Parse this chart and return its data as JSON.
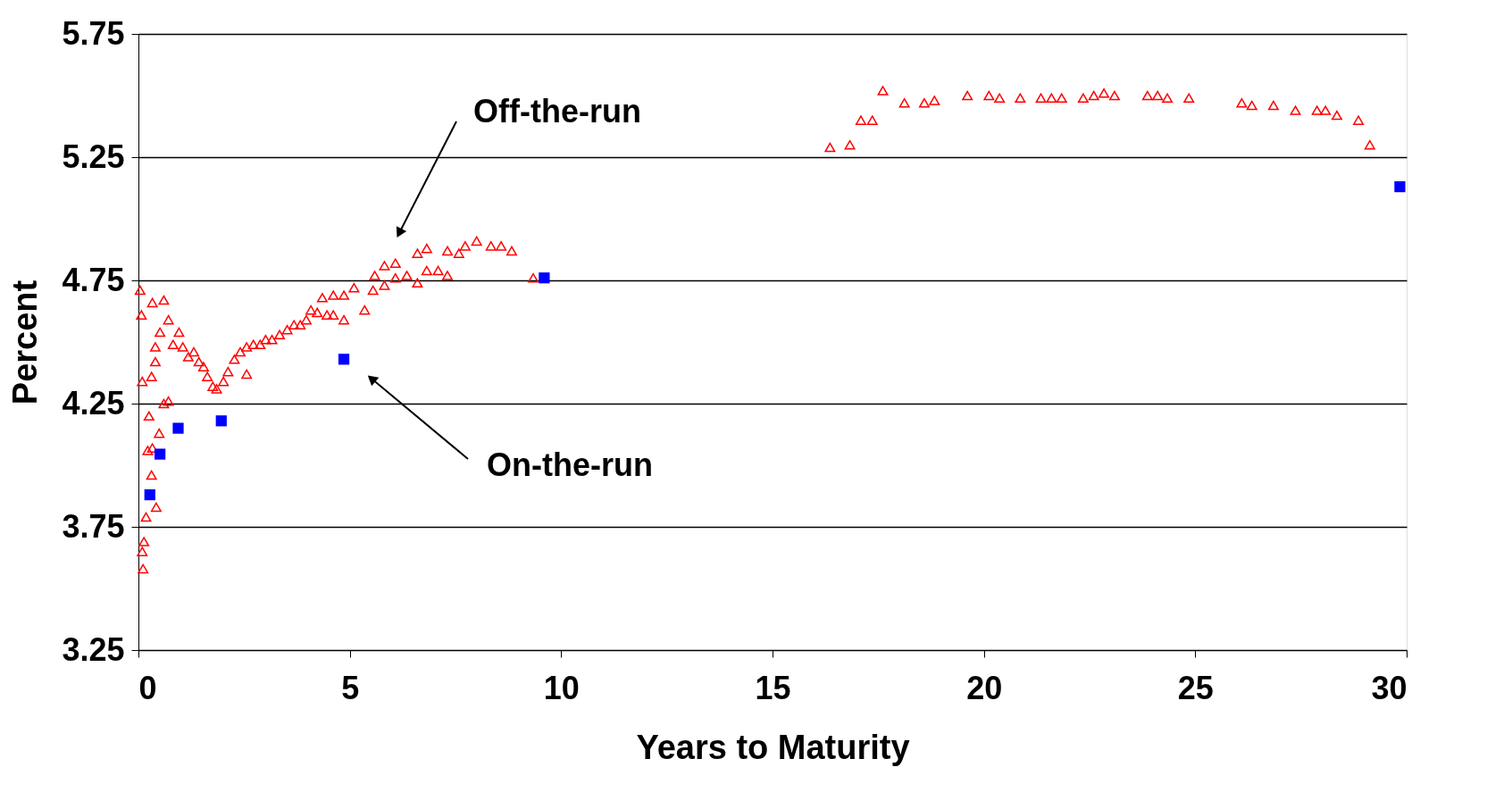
{
  "chart_data": {
    "type": "scatter",
    "xlabel": "Years to Maturity",
    "ylabel": "Percent",
    "xlim": [
      0,
      30
    ],
    "xticks": [
      0,
      5,
      10,
      15,
      20,
      25,
      30
    ],
    "ylim": [
      3.25,
      5.75
    ],
    "yticks": [
      3.25,
      3.75,
      4.25,
      4.75,
      5.25,
      5.75
    ],
    "grid": "y",
    "annotations": [
      "Off-the-run",
      "On-the-run"
    ],
    "series": [
      {
        "color": "#ff0000",
        "marker": "triangle",
        "x": [
          0.04,
          0.07,
          0.09,
          0.09,
          0.11,
          0.13,
          0.18,
          0.22,
          0.25,
          0.31,
          0.31,
          0.33,
          0.33,
          0.4,
          0.4,
          0.42,
          0.49,
          0.51,
          0.6,
          0.6,
          0.71,
          0.71,
          0.82,
          0.96,
          1.05,
          1.18,
          1.31,
          1.43,
          1.54,
          1.63,
          1.76,
          1.85,
          2.01,
          2.12,
          2.27,
          2.41,
          2.56,
          2.56,
          2.72,
          2.88,
          3.01,
          3.16,
          3.34,
          3.52,
          3.68,
          3.83,
          3.97,
          4.08,
          4.23,
          4.35,
          4.46,
          4.61,
          4.61,
          4.86,
          4.86,
          5.1,
          5.35,
          5.55,
          5.59,
          5.82,
          5.82,
          6.08,
          6.08,
          6.35,
          6.6,
          6.6,
          6.82,
          6.82,
          7.09,
          7.31,
          7.31,
          7.58,
          7.73,
          8.0,
          8.34,
          8.58,
          8.83,
          9.34,
          16.36,
          16.83,
          17.09,
          17.36,
          17.61,
          18.12,
          18.59,
          18.83,
          19.61,
          20.12,
          20.37,
          20.86,
          21.35,
          21.6,
          21.84,
          22.35,
          22.6,
          22.84,
          23.09,
          23.87,
          24.11,
          24.34,
          24.85,
          26.1,
          26.34,
          26.85,
          27.37,
          27.88,
          28.08,
          28.35,
          28.86,
          29.13
        ],
        "values": [
          4.71,
          4.61,
          4.34,
          3.65,
          3.58,
          3.69,
          3.79,
          4.06,
          4.2,
          4.36,
          3.96,
          4.66,
          4.07,
          4.48,
          4.42,
          3.83,
          4.13,
          4.54,
          4.67,
          4.25,
          4.59,
          4.26,
          4.49,
          4.54,
          4.48,
          4.44,
          4.46,
          4.42,
          4.4,
          4.36,
          4.32,
          4.31,
          4.34,
          4.38,
          4.43,
          4.46,
          4.37,
          4.48,
          4.49,
          4.49,
          4.51,
          4.51,
          4.53,
          4.55,
          4.57,
          4.57,
          4.59,
          4.63,
          4.62,
          4.68,
          4.61,
          4.69,
          4.61,
          4.69,
          4.59,
          4.72,
          4.63,
          4.71,
          4.77,
          4.81,
          4.73,
          4.82,
          4.76,
          4.77,
          4.86,
          4.74,
          4.88,
          4.79,
          4.79,
          4.87,
          4.77,
          4.86,
          4.89,
          4.91,
          4.89,
          4.89,
          4.87,
          4.76,
          5.29,
          5.3,
          5.4,
          5.4,
          5.52,
          5.47,
          5.47,
          5.48,
          5.5,
          5.5,
          5.49,
          5.49,
          5.49,
          5.49,
          5.49,
          5.49,
          5.5,
          5.51,
          5.5,
          5.5,
          5.5,
          5.49,
          5.49,
          5.47,
          5.46,
          5.46,
          5.44,
          5.44,
          5.44,
          5.42,
          5.4,
          5.3
        ]
      },
      {
        "color": "#0000ff",
        "marker": "square",
        "x": [
          0.27,
          0.51,
          0.94,
          1.96,
          4.86,
          9.6,
          29.84
        ],
        "values": [
          3.88,
          4.045,
          4.15,
          4.18,
          4.43,
          4.76,
          5.13
        ]
      }
    ]
  }
}
